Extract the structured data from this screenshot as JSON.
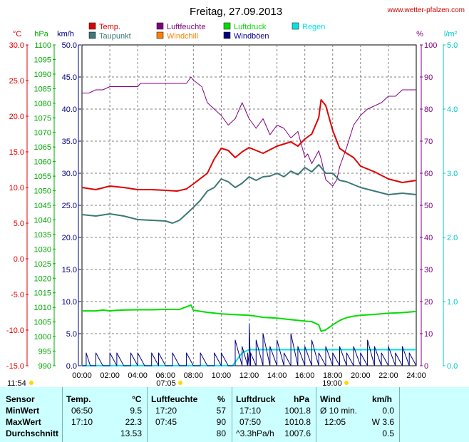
{
  "colors": {
    "temp": "#e00000",
    "humidity": "#800080",
    "pressure": "#00dd00",
    "dewpoint": "#3c7878",
    "windchill": "#ff8000",
    "gusts": "#000080",
    "rain": "#00e5e5",
    "grid": "#808080",
    "table_bg": "#ccffff",
    "site": "#d00000",
    "sun": "#ffd800"
  },
  "header": {
    "title": "Freitag, 27.09.2013",
    "site": "www.wetter-pfalzen.com"
  },
  "legend": [
    {
      "label": "Temp.",
      "color": "#e00000"
    },
    {
      "label": "Luftfeuchte",
      "color": "#800080"
    },
    {
      "label": "Luftdruck",
      "color": "#00dd00"
    },
    {
      "label": "Regen",
      "color": "#00e5e5"
    },
    {
      "label": "Taupunkt",
      "color": "#3c7878"
    },
    {
      "label": "Windchill",
      "color": "#ff8000"
    },
    {
      "label": "Windböen",
      "color": "#000080"
    }
  ],
  "axes": {
    "units": {
      "temp": "°C",
      "pressure": "hPa",
      "wind": "km/h",
      "humidity": "%",
      "rain": "l/m²"
    },
    "temp_ticks": [
      "30.0",
      "25.0",
      "20.0",
      "15.0",
      "10.0",
      "5.0",
      "0.0",
      "-5.0",
      "-10.0",
      "-15.0"
    ],
    "pressure_ticks": [
      "1100",
      "1095",
      "1090",
      "1085",
      "1080",
      "1075",
      "1070",
      "1065",
      "1060",
      "1055",
      "1050",
      "1045",
      "1040",
      "1035",
      "1030",
      "1025",
      "1020",
      "1015",
      "1010",
      "1005",
      "1000",
      "995",
      "990"
    ],
    "wind_ticks": [
      "50.0",
      "45.0",
      "40.0",
      "35.0",
      "30.0",
      "25.0",
      "20.0",
      "15.0",
      "10.0",
      "5.0",
      "0.0"
    ],
    "humidity_ticks": [
      "100",
      "90",
      "80",
      "70",
      "60",
      "50",
      "40",
      "30",
      "20",
      "10",
      "0"
    ],
    "rain_ticks": [
      "5.0",
      "4.0",
      "3.0",
      "2.0",
      "1.0",
      "0.0"
    ],
    "time_ticks": [
      "00:00",
      "02:00",
      "04:00",
      "06:00",
      "08:00",
      "10:00",
      "12:00",
      "14:00",
      "16:00",
      "18:00",
      "20:00",
      "22:00",
      "24:00"
    ],
    "sunrise": "07:05",
    "sunset": "19:00",
    "daylight": "11:54"
  },
  "chart_data": {
    "type": "line",
    "title": "Freitag, 27.09.2013",
    "x_range": [
      "00:00",
      "24:00"
    ],
    "grid": true,
    "legend_position": "top",
    "series": [
      {
        "name": "Temp.",
        "axis": "°C",
        "x": [
          0,
          1,
          2,
          3,
          4,
          5,
          6,
          6.83,
          7.5,
          8,
          9,
          9.5,
          10,
          10.5,
          11,
          11.5,
          12,
          13,
          14,
          15,
          15.5,
          16,
          16.5,
          17,
          17.17,
          17.5,
          18,
          18.5,
          19,
          19.5,
          20,
          21,
          22,
          23,
          24
        ],
        "y": [
          10.0,
          9.7,
          10.2,
          10.0,
          9.7,
          9.7,
          9.6,
          9.5,
          9.8,
          10.5,
          12.0,
          14.0,
          15.5,
          15.2,
          14.2,
          15.0,
          15.6,
          14.8,
          15.8,
          16.4,
          15.8,
          16.8,
          17.5,
          19.8,
          22.3,
          21.5,
          18.0,
          15.5,
          14.8,
          14.2,
          13.0,
          12.2,
          11.2,
          10.7,
          11.0
        ]
      },
      {
        "name": "Taupunkt",
        "axis": "°C",
        "x": [
          0,
          1,
          2,
          3,
          4,
          5,
          6,
          6.5,
          7,
          7.5,
          8,
          8.5,
          9,
          9.5,
          10,
          10.5,
          11,
          11.5,
          12,
          12.5,
          13,
          13.5,
          14,
          14.5,
          15,
          15.5,
          16,
          16.5,
          17,
          17.5,
          18,
          18.5,
          19,
          19.5,
          20,
          21,
          22,
          23,
          24
        ],
        "y": [
          6.2,
          6.0,
          6.3,
          6.0,
          5.5,
          5.4,
          5.3,
          5.0,
          5.4,
          6.3,
          7.2,
          8.2,
          9.5,
          10.0,
          11.2,
          10.8,
          10.0,
          10.6,
          11.5,
          11.0,
          11.5,
          11.6,
          12.0,
          11.5,
          12.3,
          11.8,
          12.8,
          12.2,
          13.2,
          12.0,
          12.0,
          11.0,
          10.8,
          10.4,
          10.0,
          9.5,
          9.0,
          9.2,
          9.0
        ]
      },
      {
        "name": "Luftfeuchte",
        "axis": "%",
        "x": [
          0,
          0.5,
          1,
          1.5,
          2,
          3,
          4,
          4.2,
          5,
          5.5,
          6,
          6.5,
          7,
          7.5,
          7.83,
          8,
          8.6,
          9,
          9.5,
          10,
          10.5,
          11,
          11.3,
          11.5,
          12,
          12.5,
          13,
          13.5,
          14,
          14.5,
          15,
          15.5,
          16,
          16.2,
          16.5,
          17,
          17.2,
          17.5,
          18,
          18.3,
          18.5,
          19,
          19.5,
          20,
          20.5,
          21,
          21.5,
          22,
          22.5,
          23,
          24
        ],
        "y": [
          85,
          85,
          86,
          86,
          87,
          87,
          87,
          88,
          88,
          88,
          88,
          88,
          88,
          88,
          90,
          89,
          87,
          82,
          80,
          78,
          75,
          77,
          80,
          82,
          77,
          74,
          77,
          72,
          75,
          74,
          71,
          73,
          65,
          66,
          63,
          67,
          64,
          58,
          56,
          58,
          62,
          68,
          75,
          78,
          80,
          81,
          82,
          84,
          84,
          86,
          86
        ]
      },
      {
        "name": "Luftdruck",
        "axis": "hPa",
        "x": [
          0,
          1,
          1.5,
          2,
          2.5,
          3,
          4,
          5,
          6,
          7,
          7.83,
          8,
          9,
          10,
          11,
          12,
          12.5,
          13,
          14,
          15,
          16,
          16.5,
          17,
          17.17,
          17.5,
          18,
          18.5,
          19,
          19.5,
          20,
          21,
          22,
          23,
          24
        ],
        "y": [
          1008.8,
          1008.8,
          1009.1,
          1008.8,
          1009.0,
          1009.1,
          1009.2,
          1009.2,
          1009.3,
          1009.3,
          1010.8,
          1009.0,
          1008.3,
          1007.8,
          1007.5,
          1007.3,
          1007.0,
          1006.6,
          1006.3,
          1005.8,
          1005.3,
          1005.1,
          1004.0,
          1001.8,
          1002.3,
          1004.0,
          1005.5,
          1006.5,
          1007.0,
          1007.3,
          1007.6,
          1008.0,
          1008.2,
          1008.6
        ]
      },
      {
        "name": "Windböen",
        "axis": "km/h",
        "x": [
          0,
          0.3,
          0.6,
          1,
          1.5,
          2,
          2.5,
          3,
          3.5,
          4,
          4.5,
          5,
          5.5,
          6,
          6.5,
          7,
          7.5,
          8,
          8.5,
          9,
          9.5,
          10,
          10.5,
          11,
          11.5,
          11.9,
          12,
          12.1,
          12.5,
          13,
          13.5,
          14,
          14.5,
          15,
          15.5,
          16,
          16.5,
          17,
          17.5,
          18,
          18.5,
          19,
          19.5,
          20,
          20.5,
          21,
          21.5,
          22,
          22.5,
          23,
          23.5,
          24
        ],
        "y": [
          0,
          2,
          0,
          2,
          0,
          2,
          2,
          0,
          2,
          2,
          0,
          2,
          2,
          0,
          2,
          0,
          2,
          0,
          2,
          0,
          2,
          2,
          0,
          4,
          3,
          2,
          6.5,
          2,
          4,
          5,
          3,
          4,
          2,
          5,
          3,
          3,
          4,
          2,
          3,
          2,
          3,
          2,
          3,
          2,
          4,
          3,
          2,
          3,
          2,
          3,
          2,
          0
        ]
      },
      {
        "name": "Regen",
        "axis": "l/m²",
        "x": [
          0,
          10.8,
          11.5,
          12,
          12.5,
          24
        ],
        "y": [
          0,
          0,
          0.2,
          0.25,
          0.25,
          0.25
        ]
      }
    ]
  },
  "table": {
    "headers": {
      "sensor": "Sensor",
      "temp": "Temp.",
      "temp_unit": "°C",
      "hum": "Luftfeuchte",
      "hum_unit": "%",
      "press": "Luftdruck",
      "press_unit": "hPa",
      "wind": "Wind",
      "wind_unit": "km/h"
    },
    "rows": [
      {
        "label": "MinWert",
        "t_time": "06:50",
        "t_val": "9.5",
        "h_time": "17:20",
        "h_val": "57",
        "p_time": "17:10",
        "p_val": "1001.8",
        "w_time": "Ø 10 min.",
        "w_val": "0.0"
      },
      {
        "label": "MaxWert",
        "t_time": "17:10",
        "t_val": "22.3",
        "h_time": "07:45",
        "h_val": "90",
        "p_time": "07:50",
        "p_val": "1010.8",
        "w_time": "12:05",
        "w_val": "W 3.6"
      },
      {
        "label": "Durchschnitt",
        "t_time": "",
        "t_val": "13.53",
        "h_time": "",
        "h_val": "80",
        "p_time": "^3.3hPa/h",
        "p_val": "1007.6",
        "w_time": "",
        "w_val": "0.5"
      }
    ]
  }
}
